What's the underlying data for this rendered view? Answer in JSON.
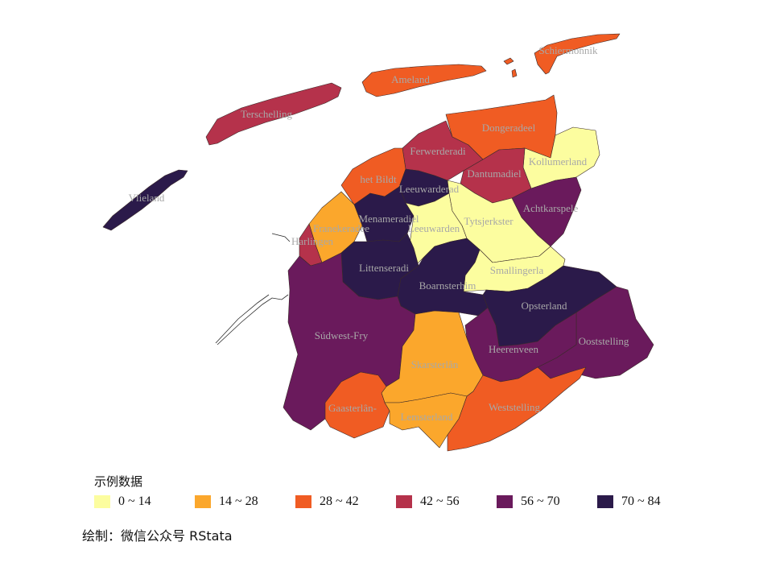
{
  "legend": {
    "title": "示例数据",
    "items": [
      {
        "label": "0 ~ 14",
        "color": "#fcfd9f",
        "name": "0-14"
      },
      {
        "label": "14 ~ 28",
        "color": "#fba72c",
        "name": "14-28"
      },
      {
        "label": "28 ~ 42",
        "color": "#f05c23",
        "name": "28-42"
      },
      {
        "label": "42 ~ 56",
        "color": "#b5324b",
        "name": "42-56"
      },
      {
        "label": "56 ~ 70",
        "color": "#6a1a5c",
        "name": "56-70"
      },
      {
        "label": "70 ~ 84",
        "color": "#2b1a4a",
        "name": "70-84"
      }
    ]
  },
  "caption": "绘制：微信公众号 RStata",
  "regions": [
    {
      "id": "vlieland",
      "label": "Vlieland",
      "class": "70-84"
    },
    {
      "id": "terschelling",
      "label": "Terschelling",
      "class": "42-56"
    },
    {
      "id": "ameland",
      "label": "Ameland",
      "class": "28-42"
    },
    {
      "id": "schiermonnikoog",
      "label": "Schiermonnik",
      "class": "28-42"
    },
    {
      "id": "dongeradeel",
      "label": "Dongeradeel",
      "class": "28-42"
    },
    {
      "id": "kollumerland",
      "label": "Kollumerland",
      "class": "0-14"
    },
    {
      "id": "ferwerderadiel",
      "label": "Ferwerderadi",
      "class": "42-56"
    },
    {
      "id": "dantumadiel",
      "label": "Dantumadiel",
      "class": "42-56"
    },
    {
      "id": "het-bildt",
      "label": "het Bildt",
      "class": "28-42"
    },
    {
      "id": "leeuwarderadeel",
      "label": "Leeuwarderad",
      "class": "70-84"
    },
    {
      "id": "achtkarspelen",
      "label": "Achtkarspele",
      "class": "56-70"
    },
    {
      "id": "franekeradeel",
      "label": "Franekeradee",
      "class": "14-28"
    },
    {
      "id": "menameradiel",
      "label": "Menameradiel",
      "class": "70-84"
    },
    {
      "id": "leeuwarden",
      "label": "Leeuwarden",
      "class": "0-14"
    },
    {
      "id": "tytsjerksteradiel",
      "label": "Tytsjerkster",
      "class": "0-14"
    },
    {
      "id": "harlingen",
      "label": "Harlingen",
      "class": "42-56"
    },
    {
      "id": "littenseradiel",
      "label": "Littenseradi",
      "class": "70-84"
    },
    {
      "id": "smallingerland",
      "label": "Smallingerla",
      "class": "0-14"
    },
    {
      "id": "boarnsterhim",
      "label": "Boarnsterhim",
      "class": "70-84"
    },
    {
      "id": "opsterland",
      "label": "Opsterland",
      "class": "70-84"
    },
    {
      "id": "sudwest-fryslan",
      "label": "Súdwest-Fry",
      "class": "56-70"
    },
    {
      "id": "ooststellingwerf",
      "label": "Ooststelling",
      "class": "56-70"
    },
    {
      "id": "heerenveen",
      "label": "Heerenveen",
      "class": "56-70"
    },
    {
      "id": "skarsterlan",
      "label": "Skarsterlân",
      "class": "14-28"
    },
    {
      "id": "gaasterlan",
      "label": "Gaasterlân-",
      "class": "28-42"
    },
    {
      "id": "weststellingwerf",
      "label": "Weststelling",
      "class": "28-42"
    },
    {
      "id": "lemsterland",
      "label": "Lemsterland",
      "class": "14-28"
    }
  ]
}
